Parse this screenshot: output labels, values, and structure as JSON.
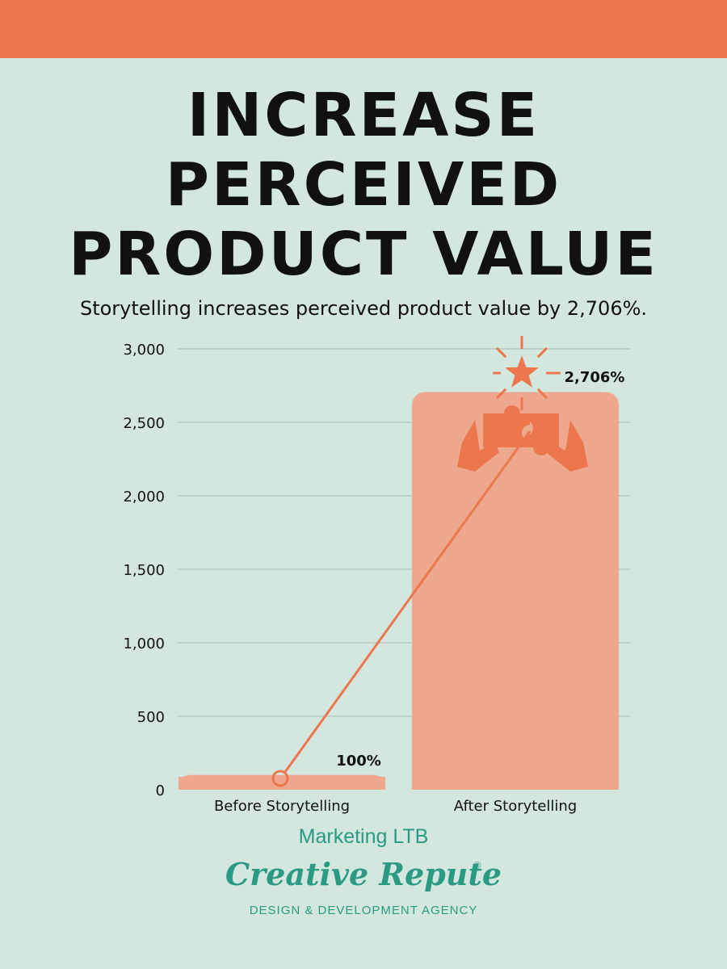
{
  "header": {
    "title_lines": [
      "INCREASE",
      "PERCEIVED",
      "PRODUCT VALUE"
    ],
    "subtitle": "Storytelling increases perceived product value by 2,706%."
  },
  "colors": {
    "background": "#d3e7df",
    "accent": "#ec774d",
    "bar": "#eda88e",
    "brand_teal": "#2a9a82"
  },
  "chart_data": {
    "type": "bar",
    "title": "INCREASE PERCEIVED PRODUCT VALUE",
    "subtitle": "Storytelling increases perceived product value by 2,706%.",
    "categories": [
      "Before Storytelling",
      "After Storytelling"
    ],
    "values": [
      100,
      2706
    ],
    "data_labels": [
      "100%",
      "2,706%"
    ],
    "ylim": [
      0,
      3000
    ],
    "yticks": [
      0,
      500,
      1000,
      1500,
      2000,
      2500,
      3000
    ],
    "ytick_labels": [
      "0",
      "500",
      "1,000",
      "1,500",
      "2,000",
      "2,500",
      "3,000"
    ],
    "xlabel": "",
    "ylabel": "",
    "grid": true,
    "connector_line": true
  },
  "footer": {
    "source": "Marketing LTB",
    "logo_wordmark": "Creative Repute",
    "logo_tagline": "DESIGN & DEVELOPMENT AGENCY",
    "registered_mark": "®"
  }
}
